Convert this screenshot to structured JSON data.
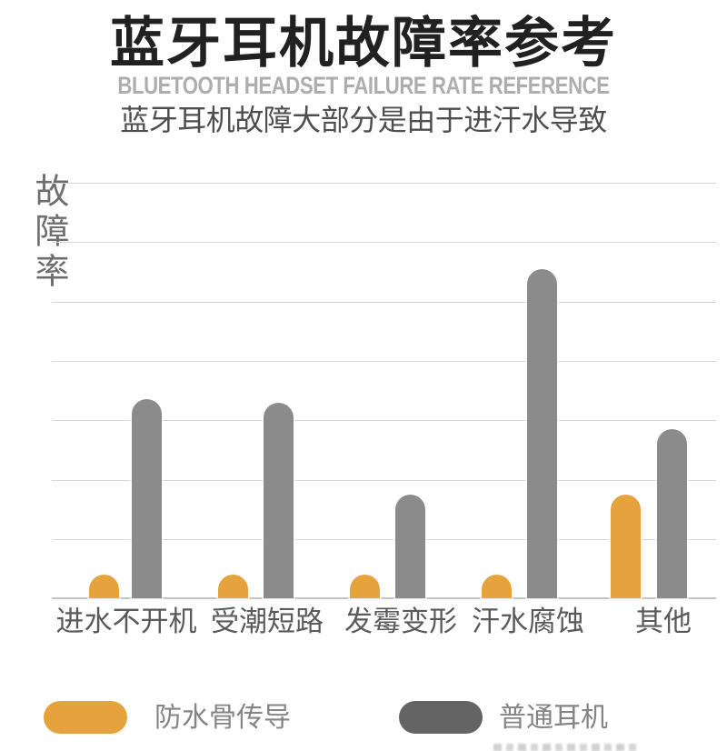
{
  "header": {
    "title": "蓝牙耳机故障率参考",
    "subtitle_en": "BLUETOOTH HEADSET FAILURE RATE REFERENCE",
    "subtitle_cn": "蓝牙耳机故障大部分是由于进汗水导致"
  },
  "chart_data": {
    "type": "bar",
    "title": "蓝牙耳机故障率参考",
    "ylabel": "故障率",
    "xlabel": "",
    "categories": [
      "进水不开机",
      "受潮短路",
      "发霉变形",
      "汗水腐蚀",
      "其他"
    ],
    "series": [
      {
        "name": "防水骨传导",
        "key": "waterproof",
        "color": "#E6A23C",
        "values": [
          4,
          4,
          4,
          4,
          17.5
        ]
      },
      {
        "name": "普通耳机",
        "key": "regular",
        "color": "#8B8B8B",
        "values": [
          33.5,
          33,
          17.5,
          55.5,
          28.5
        ]
      }
    ],
    "value_units": "percent (estimated; axis has no numeric tick labels)",
    "ylim": [
      0,
      70
    ],
    "grid": "horizontal",
    "gridline_interval": 10,
    "legend_position": "bottom",
    "bar_style": "rounded-top"
  },
  "legend": {
    "items": [
      {
        "label": "防水骨传导",
        "swatch_color": "#E6A23C"
      },
      {
        "label": "普通耳机",
        "swatch_color": "#646464"
      }
    ]
  },
  "colors": {
    "title": "#212121",
    "subtitle_en": "#adadad",
    "subtitle_cn": "#4e4e4e",
    "axis_label": "#6e6e6e",
    "category_label": "#5a5a5a",
    "legend_label": "#848484",
    "gridline": "#d6d6d6",
    "baseline": "#c4c4c4",
    "background": "#ffffff"
  }
}
